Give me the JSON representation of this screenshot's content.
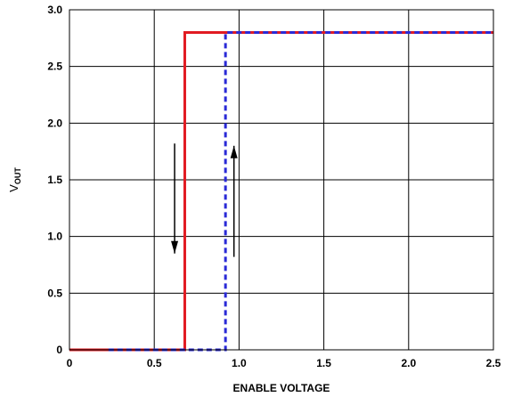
{
  "chart_data": {
    "type": "line",
    "xlabel": "ENABLE VOLTAGE",
    "ylabel": {
      "main": "V",
      "subscript": "OUT"
    },
    "xlim": [
      0,
      2.5
    ],
    "ylim": [
      0,
      3.0
    ],
    "xticks": [
      0,
      0.5,
      1.0,
      1.5,
      2.0,
      2.5
    ],
    "xtick_labels": [
      "0",
      "0.5",
      "1.0",
      "1.5",
      "2.0",
      "2.5"
    ],
    "yticks": [
      0,
      0.5,
      1.0,
      1.5,
      2.0,
      2.5,
      3.0
    ],
    "ytick_labels": [
      "0",
      "0.5",
      "1.0",
      "1.5",
      "2.0",
      "2.5",
      "3.0"
    ],
    "grid": true,
    "series": [
      {
        "color": "#e11b22",
        "style": "solid",
        "x": [
          0,
          0.68,
          0.68,
          2.5
        ],
        "y": [
          0,
          0,
          2.8,
          2.8
        ]
      },
      {
        "color": "#2a2ad6",
        "style": "dashed",
        "x": [
          0.23,
          0.92,
          0.92,
          2.5
        ],
        "y": [
          0,
          0,
          2.8,
          2.8
        ]
      }
    ],
    "annotations": [
      {
        "type": "arrow",
        "direction": "down",
        "x": 0.62,
        "y_start": 1.82,
        "y_end": 0.85
      },
      {
        "type": "arrow",
        "direction": "up",
        "x": 0.97,
        "y_start": 0.82,
        "y_end": 1.8
      }
    ]
  }
}
